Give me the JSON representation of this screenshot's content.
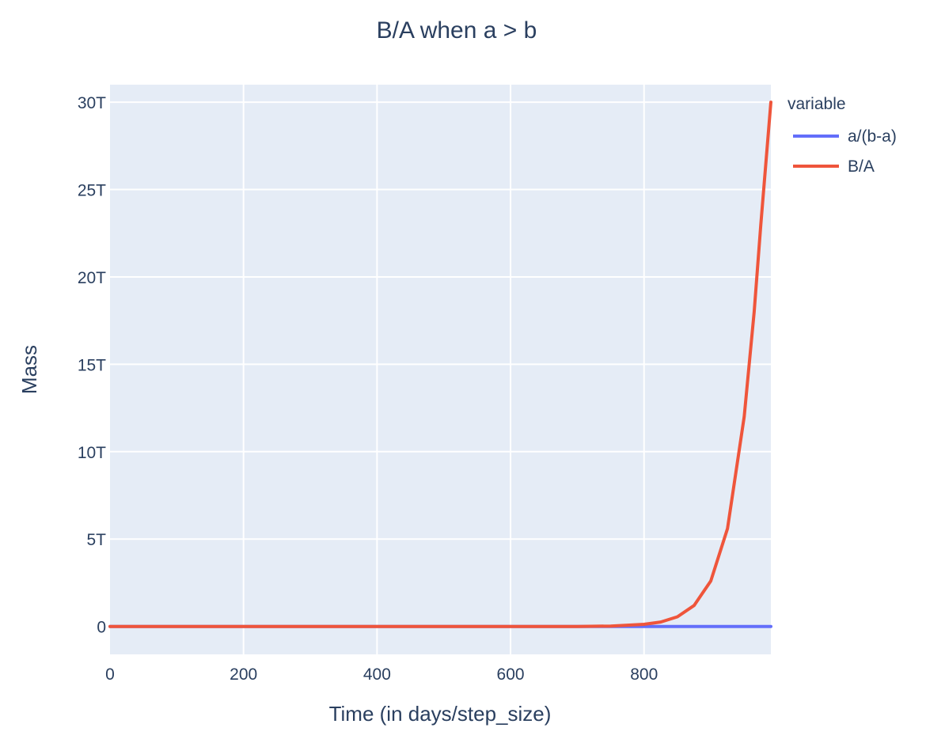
{
  "chart_data": {
    "type": "line",
    "title": "B/A when a > b",
    "xlabel": "Time (in days/step_size)",
    "ylabel": "Mass",
    "xlim": [
      0,
      990
    ],
    "ylim": [
      -1600000000000.0,
      31000000000000.0
    ],
    "x_ticks": [
      0,
      200,
      400,
      600,
      800
    ],
    "x_tick_labels": [
      "0",
      "200",
      "400",
      "600",
      "800"
    ],
    "y_ticks": [
      0,
      5000000000000.0,
      10000000000000.0,
      15000000000000.0,
      20000000000000.0,
      25000000000000.0,
      30000000000000.0
    ],
    "y_tick_labels": [
      "0",
      "5T",
      "10T",
      "15T",
      "20T",
      "25T",
      "30T"
    ],
    "grid": true,
    "legend": {
      "title": "variable",
      "position": "top-right"
    },
    "series": [
      {
        "name": "a/(b-a)",
        "color": "#636efa",
        "x": [
          0,
          990
        ],
        "y": [
          0,
          0
        ]
      },
      {
        "name": "B/A",
        "color": "#ef553b",
        "x": [
          0,
          200,
          400,
          600,
          700,
          750,
          800,
          825,
          850,
          875,
          900,
          925,
          950,
          965,
          975,
          990
        ],
        "y": [
          0,
          0,
          0,
          0,
          0,
          20000000000.0,
          120000000000.0,
          250000000000.0,
          550000000000.0,
          1200000000000.0,
          2600000000000.0,
          5600000000000.0,
          12000000000000.0,
          18000000000000.0,
          23000000000000.0,
          30000000000000.0
        ]
      }
    ]
  }
}
